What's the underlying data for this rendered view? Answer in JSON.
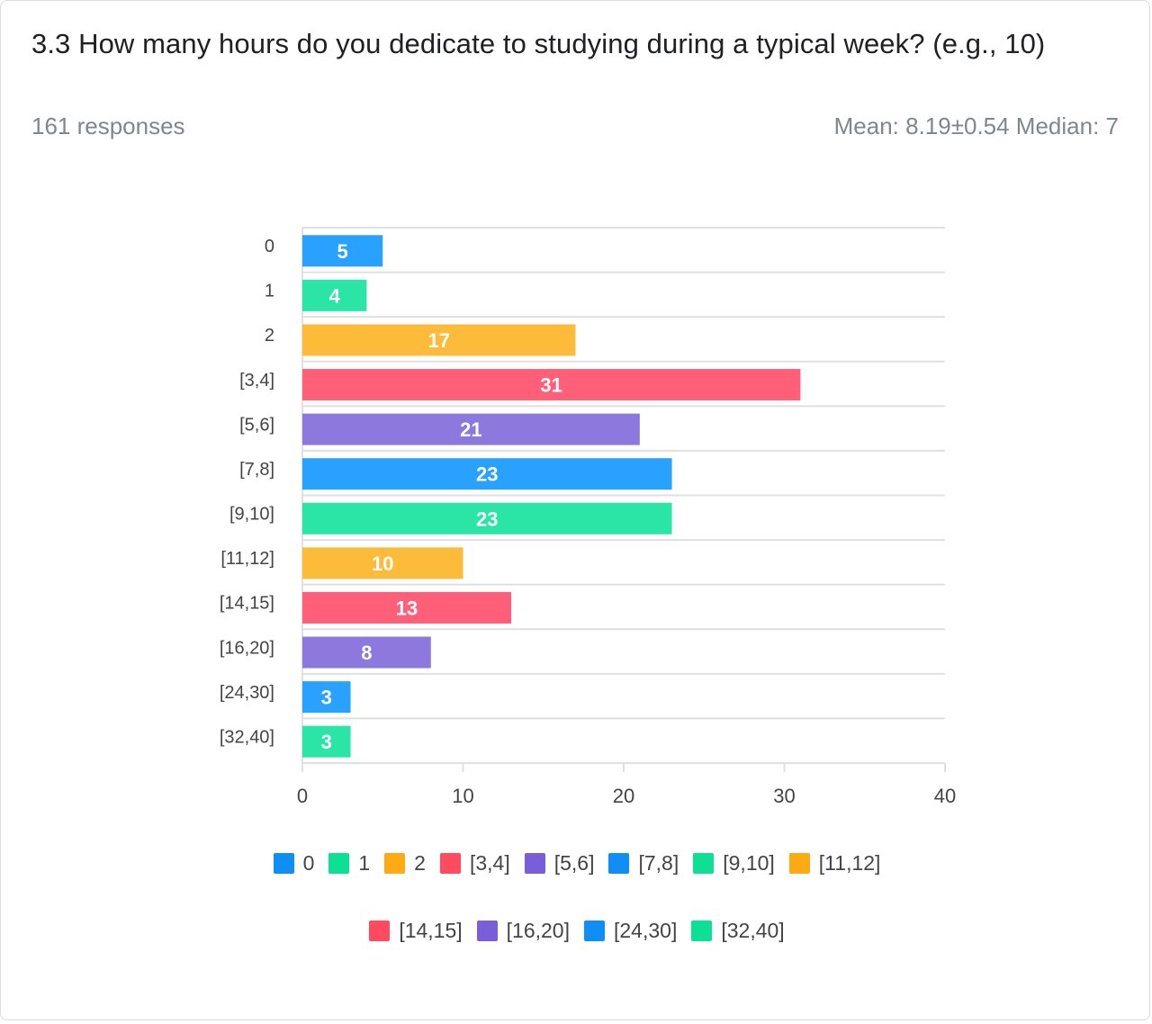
{
  "question": {
    "title": "3.3  How many hours do you dedicate to studying during a typical week? (e.g., 10)",
    "responses": "161 responses",
    "stats": "Mean: 8.19±0.54 Median: 7"
  },
  "colors": {
    "bars": [
      "#29a2ff",
      "#2ae5a5",
      "#fdbb3a",
      "#ff5f79",
      "#8d79de",
      "#29a2ff",
      "#2ae5a5",
      "#fdbb3a",
      "#ff5f79",
      "#8d79de",
      "#29a2ff",
      "#2ae5a5"
    ],
    "legend": [
      "#0f8ff5",
      "#0be095",
      "#fdaa14",
      "#ff4a5f",
      "#7a5dd8",
      "#0f8ff5",
      "#0be095",
      "#fdaa14",
      "#ff4a5f",
      "#7a5dd8",
      "#0f8ff5",
      "#0be095"
    ],
    "grid": "#e0e0e0",
    "axis_text": "#444444"
  },
  "chart_data": {
    "type": "bar",
    "orientation": "horizontal",
    "categories": [
      "0",
      "1",
      "2",
      "[3,4]",
      "[5,6]",
      "[7,8]",
      "[9,10]",
      "[11,12]",
      "[14,15]",
      "[16,20]",
      "[24,30]",
      "[32,40]"
    ],
    "values": [
      5,
      4,
      17,
      31,
      21,
      23,
      23,
      10,
      13,
      8,
      3,
      3
    ],
    "xlim": [
      0,
      40
    ],
    "xticks": [
      "0",
      "10",
      "20",
      "30",
      "40"
    ],
    "grid": true,
    "data_labels": true,
    "legend_placement": "bottom"
  }
}
